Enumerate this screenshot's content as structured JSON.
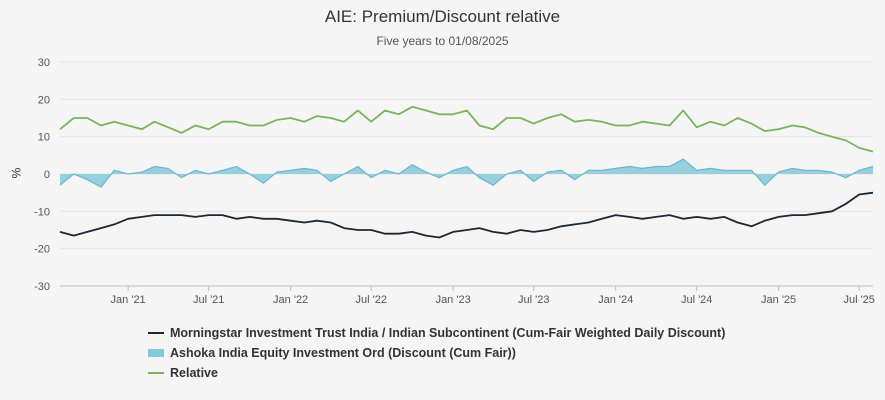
{
  "chart_data": {
    "type": "line",
    "title": "AIE: Premium/Discount relative",
    "subtitle": "Five years to 01/08/2025",
    "ylabel": "%",
    "xlabel": "",
    "ylim": [
      -30,
      30
    ],
    "yticks": [
      30,
      20,
      10,
      0,
      -10,
      -20,
      -30
    ],
    "xlim": [
      "2020-08-01",
      "2025-08-01"
    ],
    "xticks": [
      {
        "label": "Jan '21",
        "date": "2021-01-01"
      },
      {
        "label": "Jul '21",
        "date": "2021-07-01"
      },
      {
        "label": "Jan '22",
        "date": "2022-01-01"
      },
      {
        "label": "Jul '22",
        "date": "2022-07-01"
      },
      {
        "label": "Jan '23",
        "date": "2023-01-01"
      },
      {
        "label": "Jul '23",
        "date": "2023-07-01"
      },
      {
        "label": "Jan '24",
        "date": "2024-01-01"
      },
      {
        "label": "Jul '24",
        "date": "2024-07-01"
      },
      {
        "label": "Jan '25",
        "date": "2025-01-01"
      },
      {
        "label": "Jul '25",
        "date": "2025-07-01"
      }
    ],
    "grid": true,
    "legend_position": "bottom",
    "series": [
      {
        "name": "Morningstar Investment Trust India / Indian Subcontinent (Cum-Fair Weighted Daily Discount)",
        "style": "line",
        "color": "#1c2833",
        "dates": [
          "2020-08-01",
          "2020-09-01",
          "2020-10-01",
          "2020-11-01",
          "2020-12-01",
          "2021-01-01",
          "2021-02-01",
          "2021-03-01",
          "2021-04-01",
          "2021-05-01",
          "2021-06-01",
          "2021-07-01",
          "2021-08-01",
          "2021-09-01",
          "2021-10-01",
          "2021-11-01",
          "2021-12-01",
          "2022-01-01",
          "2022-02-01",
          "2022-03-01",
          "2022-04-01",
          "2022-05-01",
          "2022-06-01",
          "2022-07-01",
          "2022-08-01",
          "2022-09-01",
          "2022-10-01",
          "2022-11-01",
          "2022-12-01",
          "2023-01-01",
          "2023-02-01",
          "2023-03-01",
          "2023-04-01",
          "2023-05-01",
          "2023-06-01",
          "2023-07-01",
          "2023-08-01",
          "2023-09-01",
          "2023-10-01",
          "2023-11-01",
          "2023-12-01",
          "2024-01-01",
          "2024-02-01",
          "2024-03-01",
          "2024-04-01",
          "2024-05-01",
          "2024-06-01",
          "2024-07-01",
          "2024-08-01",
          "2024-09-01",
          "2024-10-01",
          "2024-11-01",
          "2024-12-01",
          "2025-01-01",
          "2025-02-01",
          "2025-03-01",
          "2025-04-01",
          "2025-05-01",
          "2025-06-01",
          "2025-07-01",
          "2025-08-01"
        ],
        "values": [
          -15.5,
          -16.5,
          -15.5,
          -14.5,
          -13.5,
          -12,
          -11.5,
          -11,
          -11,
          -11,
          -11.5,
          -11,
          -11,
          -12,
          -11.5,
          -12,
          -12,
          -12.5,
          -13,
          -12.5,
          -13,
          -14.5,
          -15,
          -15,
          -16,
          -16,
          -15.5,
          -16.5,
          -17,
          -15.5,
          -15,
          -14.5,
          -15.5,
          -16,
          -15,
          -15.5,
          -15,
          -14,
          -13.5,
          -13,
          -12,
          -11,
          -11.5,
          -12,
          -11.5,
          -11,
          -12,
          -11.5,
          -12,
          -11.5,
          -13,
          -14,
          -12.5,
          -11.5,
          -11,
          -11,
          -10.5,
          -10,
          -8,
          -5.5,
          -5
        ]
      },
      {
        "name": "Ashoka India Equity Investment Ord (Discount (Cum Fair))",
        "style": "area",
        "color": "#86c8db",
        "dates": [
          "2020-08-01",
          "2020-09-01",
          "2020-10-01",
          "2020-11-01",
          "2020-12-01",
          "2021-01-01",
          "2021-02-01",
          "2021-03-01",
          "2021-04-01",
          "2021-05-01",
          "2021-06-01",
          "2021-07-01",
          "2021-08-01",
          "2021-09-01",
          "2021-10-01",
          "2021-11-01",
          "2021-12-01",
          "2022-01-01",
          "2022-02-01",
          "2022-03-01",
          "2022-04-01",
          "2022-05-01",
          "2022-06-01",
          "2022-07-01",
          "2022-08-01",
          "2022-09-01",
          "2022-10-01",
          "2022-11-01",
          "2022-12-01",
          "2023-01-01",
          "2023-02-01",
          "2023-03-01",
          "2023-04-01",
          "2023-05-01",
          "2023-06-01",
          "2023-07-01",
          "2023-08-01",
          "2023-09-01",
          "2023-10-01",
          "2023-11-01",
          "2023-12-01",
          "2024-01-01",
          "2024-02-01",
          "2024-03-01",
          "2024-04-01",
          "2024-05-01",
          "2024-06-01",
          "2024-07-01",
          "2024-08-01",
          "2024-09-01",
          "2024-10-01",
          "2024-11-01",
          "2024-12-01",
          "2025-01-01",
          "2025-02-01",
          "2025-03-01",
          "2025-04-01",
          "2025-05-01",
          "2025-06-01",
          "2025-07-01",
          "2025-08-01"
        ],
        "values": [
          -3,
          0,
          -1.5,
          -3.5,
          1,
          0,
          0.5,
          2,
          1.5,
          -1,
          1,
          0,
          1,
          2,
          0,
          -2.5,
          0.5,
          1,
          1.5,
          1,
          -2,
          0,
          2,
          -1,
          1,
          0,
          2.5,
          0.5,
          -1,
          1,
          2,
          -1,
          -3,
          0,
          1,
          -2,
          0.5,
          1,
          -1.5,
          1,
          1,
          1.5,
          2,
          1.5,
          2,
          2,
          4,
          1,
          1.5,
          1,
          1,
          1,
          -3,
          0.5,
          1.5,
          1,
          1,
          0.5,
          -1,
          1,
          2
        ]
      },
      {
        "name": "Relative",
        "style": "line",
        "color": "#7ab55c",
        "dates": [
          "2020-08-01",
          "2020-09-01",
          "2020-10-01",
          "2020-11-01",
          "2020-12-01",
          "2021-01-01",
          "2021-02-01",
          "2021-03-01",
          "2021-04-01",
          "2021-05-01",
          "2021-06-01",
          "2021-07-01",
          "2021-08-01",
          "2021-09-01",
          "2021-10-01",
          "2021-11-01",
          "2021-12-01",
          "2022-01-01",
          "2022-02-01",
          "2022-03-01",
          "2022-04-01",
          "2022-05-01",
          "2022-06-01",
          "2022-07-01",
          "2022-08-01",
          "2022-09-01",
          "2022-10-01",
          "2022-11-01",
          "2022-12-01",
          "2023-01-01",
          "2023-02-01",
          "2023-03-01",
          "2023-04-01",
          "2023-05-01",
          "2023-06-01",
          "2023-07-01",
          "2023-08-01",
          "2023-09-01",
          "2023-10-01",
          "2023-11-01",
          "2023-12-01",
          "2024-01-01",
          "2024-02-01",
          "2024-03-01",
          "2024-04-01",
          "2024-05-01",
          "2024-06-01",
          "2024-07-01",
          "2024-08-01",
          "2024-09-01",
          "2024-10-01",
          "2024-11-01",
          "2024-12-01",
          "2025-01-01",
          "2025-02-01",
          "2025-03-01",
          "2025-04-01",
          "2025-05-01",
          "2025-06-01",
          "2025-07-01",
          "2025-08-01"
        ],
        "values": [
          12,
          15,
          15,
          13,
          14,
          13,
          12,
          14,
          12.5,
          11,
          13,
          12,
          14,
          14,
          13,
          13,
          14.5,
          15,
          14,
          15.5,
          15,
          14,
          17,
          14,
          17,
          16,
          18,
          17,
          16,
          16,
          17,
          13,
          12,
          15,
          15,
          13.5,
          15,
          16,
          14,
          14.5,
          14,
          13,
          13,
          14,
          13.5,
          13,
          17,
          12.5,
          14,
          13,
          15,
          13.5,
          11.5,
          12,
          13,
          12.5,
          11,
          10,
          9,
          7,
          6
        ]
      }
    ]
  }
}
